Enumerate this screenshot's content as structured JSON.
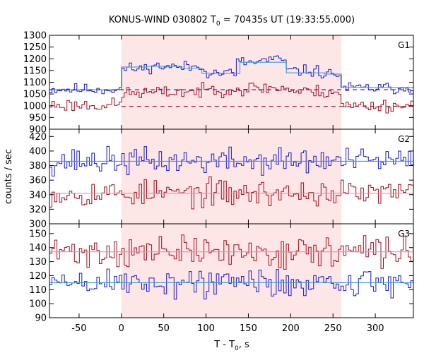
{
  "title": {
    "prefix": "KONUS-WIND 030802 T",
    "sub": "0",
    "suffix": " = 70435s UT (19:33:55.000)"
  },
  "chart_data": {
    "type": "line",
    "x_axis": {
      "label_main": "T - T",
      "label_sub": "0",
      "label_tail": ", s",
      "range": [
        -85,
        345
      ],
      "ticks": [
        -50,
        0,
        50,
        100,
        150,
        200,
        250,
        300
      ]
    },
    "y_axis_label": "counts / sec",
    "shaded_interval": {
      "range": [
        0,
        260
      ],
      "color": "#fde6e6"
    },
    "colors": {
      "blue": "#1a1acc",
      "red": "#a01020",
      "cyan_fit": "#3b9bdc",
      "pink_fit": "#e88ab0"
    },
    "panels": [
      {
        "name": "G1",
        "ylim": [
          900,
          1300
        ],
        "yticks": [
          900,
          950,
          1000,
          1050,
          1100,
          1150,
          1200,
          1250,
          1300
        ],
        "series": [
          {
            "color": "blue",
            "bin": 2.944,
            "baseline": 1070,
            "noise": 12,
            "seed": 11,
            "levels": [
              [
                -85,
                0,
                1070
              ],
              [
                0,
                30,
                1158
              ],
              [
                30,
                60,
                1168
              ],
              [
                60,
                100,
                1165
              ],
              [
                100,
                135,
                1140
              ],
              [
                135,
                165,
                1185
              ],
              [
                165,
                195,
                1195
              ],
              [
                195,
                235,
                1148
              ],
              [
                235,
                260,
                1135
              ],
              [
                260,
                345,
                1075
              ]
            ]
          },
          {
            "color": "red",
            "bin": 2.944,
            "baseline": 1000,
            "noise": 14,
            "seed": 23,
            "levels": [
              [
                -85,
                0,
                1003
              ],
              [
                0,
                60,
                1055
              ],
              [
                60,
                100,
                1060
              ],
              [
                100,
                150,
                1070
              ],
              [
                150,
                200,
                1075
              ],
              [
                200,
                260,
                1060
              ],
              [
                260,
                345,
                1000
              ]
            ]
          }
        ],
        "fits": [
          {
            "color": "cyan_fit",
            "style": "solid",
            "steps": [
              [
                -85,
                0,
                1068
              ],
              [
                0,
                30,
                1165
              ],
              [
                30,
                70,
                1168
              ],
              [
                70,
                95,
                1160
              ],
              [
                95,
                140,
                1138
              ],
              [
                140,
                195,
                1185
              ],
              [
                195,
                240,
                1140
              ],
              [
                240,
                260,
                1135
              ],
              [
                260,
                345,
                1078
              ]
            ]
          },
          {
            "color": "blue",
            "style": "dashed",
            "steps": [
              [
                -85,
                345,
                1068
              ]
            ]
          },
          {
            "color": "red",
            "style": "dashed",
            "steps": [
              [
                0,
                345,
                997
              ]
            ]
          }
        ]
      },
      {
        "name": "G2",
        "ylim": [
          300,
          430
        ],
        "yticks": [
          300,
          320,
          340,
          360,
          380,
          400,
          420
        ],
        "series": [
          {
            "color": "blue",
            "bin": 2.944,
            "baseline": 386,
            "noise": 9,
            "seed": 37,
            "levels": [
              [
                -85,
                345,
                386
              ]
            ]
          },
          {
            "color": "red",
            "bin": 2.944,
            "baseline": 342,
            "noise": 9,
            "seed": 53,
            "levels": [
              [
                -85,
                345,
                342
              ]
            ]
          }
        ],
        "fits": [
          {
            "color": "cyan_fit",
            "style": "solid",
            "steps": [
              [
                -85,
                345,
                386
              ]
            ]
          },
          {
            "color": "pink_fit",
            "style": "solid",
            "steps": [
              [
                -85,
                345,
                342
              ]
            ]
          }
        ]
      },
      {
        "name": "G3",
        "ylim": [
          90,
          157
        ],
        "yticks": [
          90,
          100,
          110,
          120,
          130,
          140,
          150
        ],
        "series": [
          {
            "color": "red",
            "bin": 2.944,
            "baseline": 137,
            "noise": 5.5,
            "seed": 71,
            "levels": [
              [
                -85,
                345,
                137
              ]
            ]
          },
          {
            "color": "blue",
            "bin": 2.944,
            "baseline": 115,
            "noise": 5.5,
            "seed": 89,
            "levels": [
              [
                -85,
                345,
                115
              ]
            ]
          }
        ],
        "fits": [
          {
            "color": "pink_fit",
            "style": "solid",
            "steps": [
              [
                -85,
                345,
                137
              ]
            ]
          },
          {
            "color": "cyan_fit",
            "style": "solid",
            "steps": [
              [
                -85,
                345,
                115
              ]
            ]
          }
        ]
      }
    ]
  }
}
